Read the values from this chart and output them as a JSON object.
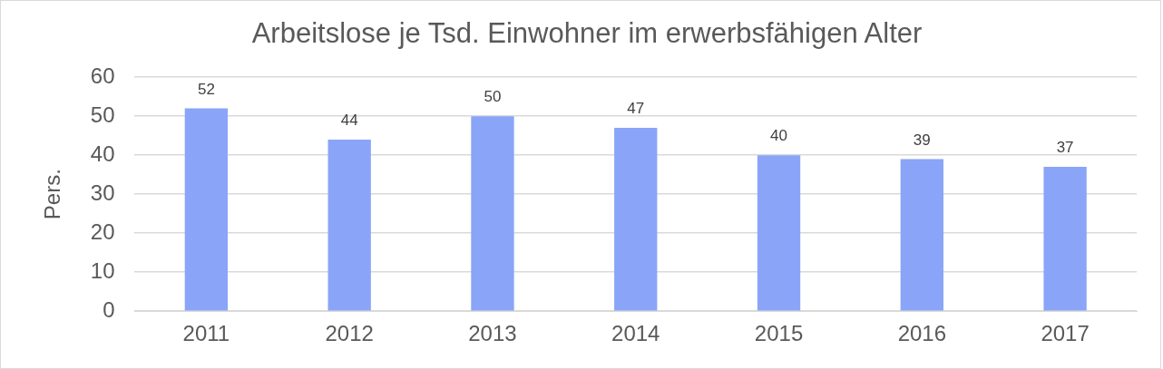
{
  "chart_data": {
    "type": "bar",
    "title": "Arbeitslose je Tsd. Einwohner im erwerbsfähigen Alter",
    "ylabel": "Pers.",
    "categories": [
      "2011",
      "2012",
      "2013",
      "2014",
      "2015",
      "2016",
      "2017"
    ],
    "values": [
      52,
      44,
      50,
      47,
      40,
      39,
      37
    ],
    "color": "#8aa4f8",
    "ylim": [
      0,
      60
    ],
    "yticks": [
      0,
      10,
      20,
      30,
      40,
      50,
      60
    ],
    "grid": "y",
    "data_labels": true,
    "legend": false
  }
}
